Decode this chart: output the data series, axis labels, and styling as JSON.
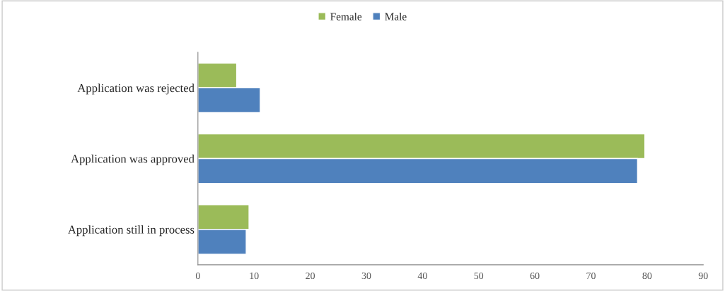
{
  "chart_data": {
    "type": "bar",
    "orientation": "horizontal",
    "categories": [
      "Application was rejected",
      "Application was approved",
      "Application still in process"
    ],
    "series": [
      {
        "name": "Female",
        "color": "#9bbb59",
        "values": [
          6.9,
          79.6,
          9.1
        ]
      },
      {
        "name": "Male",
        "color": "#4f81bd",
        "values": [
          11.1,
          78.3,
          8.6
        ]
      }
    ],
    "xlim": [
      0,
      90
    ],
    "xticks": [
      0,
      10,
      20,
      30,
      40,
      50,
      60,
      70,
      80,
      90
    ],
    "grid": false,
    "legend": "top"
  }
}
